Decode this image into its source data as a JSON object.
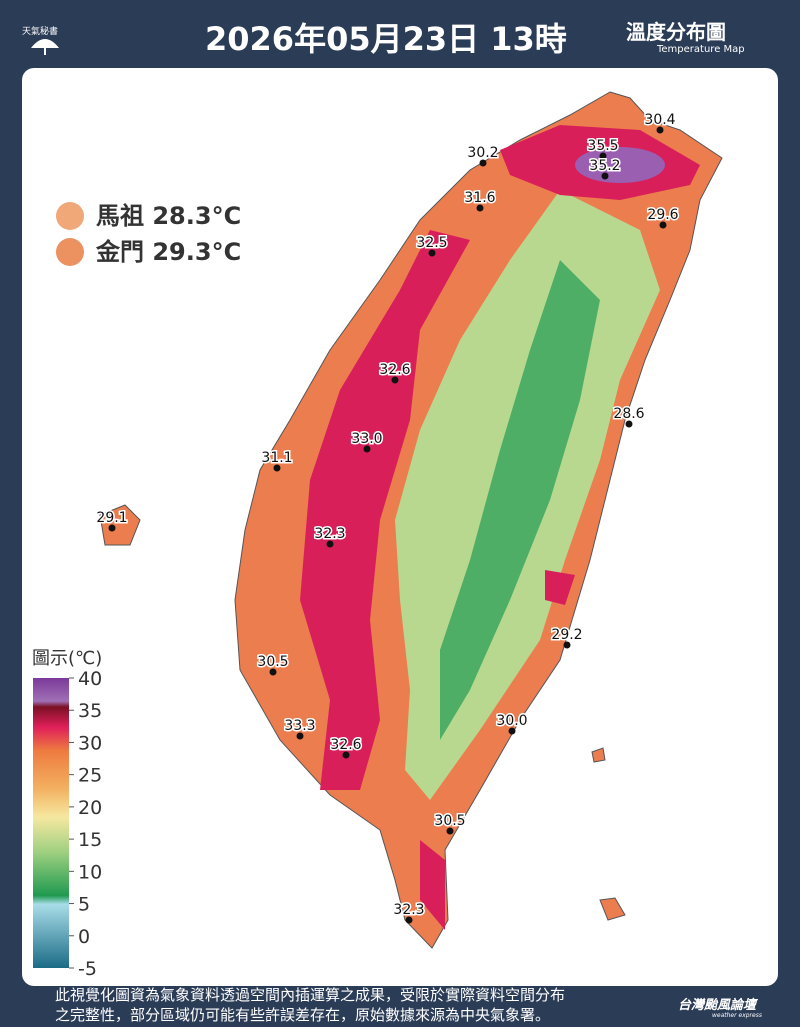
{
  "header": {
    "logo": "天氣秘書",
    "title": "2026年05月23日 13時",
    "map_title": "溫度分布圖",
    "map_subtitle": "Temperature Map"
  },
  "islands": [
    "馬祖 28.3°C",
    "金門 29.3°C"
  ],
  "stations": [
    "30.4",
    "35.5",
    "35.2",
    "30.2",
    "31.6",
    "29.6",
    "32.5",
    "32.6",
    "33.0",
    "28.6",
    "31.1",
    "29.1",
    "32.3",
    "29.2",
    "30.5",
    "30.0",
    "33.3",
    "32.6",
    "30.5",
    "32.3"
  ],
  "legend": {
    "title": "圖示(℃)",
    "ticks": [
      40,
      35,
      30,
      25,
      20,
      15,
      10,
      5,
      0,
      -5
    ],
    "range": [
      -5,
      40
    ]
  },
  "footer": {
    "lines": [
      "此視覺化圖資為氣象資料透過空間內插運算之成果，受限於實際資料空間分布",
      "之完整性，部分區域仍可能有些許誤差存在，原始數據來源為中央氣象署。"
    ],
    "brand": "台灣颱風論壇",
    "brand_sub": "weather express"
  }
}
